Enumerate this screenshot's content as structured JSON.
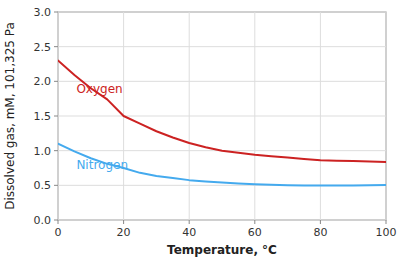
{
  "chart_data": {
    "type": "line",
    "xlabel": "Temperature, °C",
    "ylabel": "Dissolved gas, mM, 101,325 Pa",
    "x": [
      0,
      5,
      10,
      15,
      20,
      25,
      30,
      35,
      40,
      45,
      50,
      55,
      60,
      65,
      70,
      75,
      80,
      85,
      90,
      95,
      100
    ],
    "series": [
      {
        "name": "Oxygen",
        "color": "#cc2222",
        "values": [
          2.3,
          2.09,
          1.9,
          1.74,
          1.5,
          1.39,
          1.28,
          1.19,
          1.11,
          1.05,
          1.0,
          0.97,
          0.94,
          0.92,
          0.9,
          0.88,
          0.86,
          0.855,
          0.85,
          0.842,
          0.838
        ]
      },
      {
        "name": "Nitrogen",
        "color": "#44aaee",
        "values": [
          1.1,
          0.99,
          0.89,
          0.81,
          0.75,
          0.68,
          0.635,
          0.605,
          0.575,
          0.555,
          0.54,
          0.525,
          0.515,
          0.508,
          0.502,
          0.498,
          0.496,
          0.496,
          0.498,
          0.5,
          0.505
        ]
      }
    ],
    "xlim": [
      0,
      100
    ],
    "ylim": [
      0.0,
      3.0
    ],
    "xticks": [
      0,
      20,
      40,
      60,
      80,
      100
    ],
    "yticks": [
      {
        "value": 0.0,
        "label": "0.0"
      },
      0.5,
      {
        "value": 1.0,
        "label": "1.0"
      },
      1.5,
      {
        "value": 2.0,
        "label": "2.0"
      },
      2.5,
      {
        "value": 3.0,
        "label": "3.0"
      }
    ],
    "grid": true
  }
}
